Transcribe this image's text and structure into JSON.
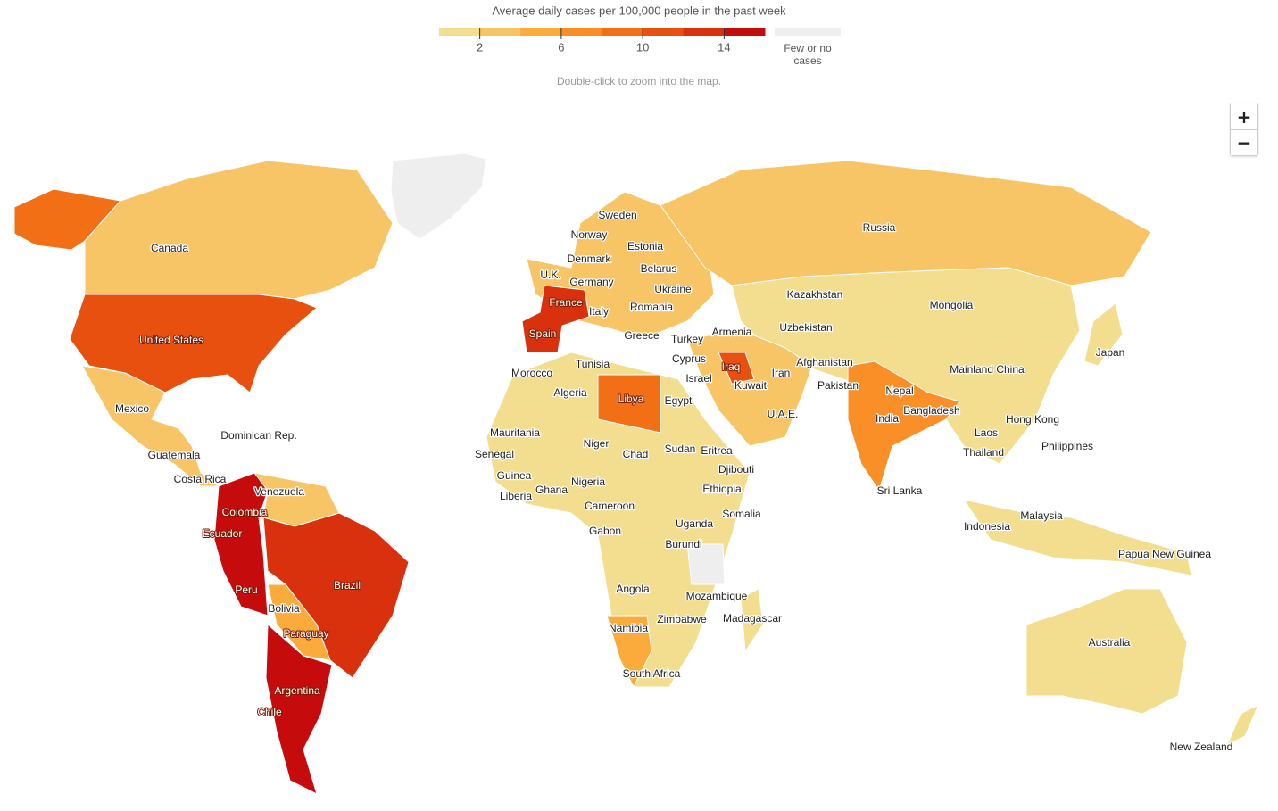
{
  "legend": {
    "title": "Average daily cases per 100,000 people in the past week",
    "range": [
      0,
      16
    ],
    "colors": [
      "#f2de8e",
      "#f8c566",
      "#fbab3c",
      "#f98f26",
      "#f26f16",
      "#e7500e",
      "#d9310e",
      "#c60b0c"
    ],
    "ticks": [
      2,
      6,
      10,
      14
    ],
    "no_data_color": "#eeeeee",
    "no_data_label": "Few or no cases"
  },
  "hint": "Double-click to zoom into the map.",
  "zoom_controls": [
    "+",
    "−"
  ],
  "countries": [
    "Canada",
    "United States",
    "Mexico",
    "Dominican Rep.",
    "Guatemala",
    "Costa Rica",
    "Venezuela",
    "Colombia",
    "Ecuador",
    "Peru",
    "Brazil",
    "Bolivia",
    "Paraguay",
    "Argentina",
    "Chile",
    "Sweden",
    "Norway",
    "Estonia",
    "Denmark",
    "Belarus",
    "U.K.",
    "Germany",
    "Ukraine",
    "France",
    "Italy",
    "Romania",
    "Spain",
    "Greece",
    "Turkey",
    "Armenia",
    "Cyprus",
    "Tunisia",
    "Morocco",
    "Iraq",
    "Israel",
    "Kuwait",
    "Algeria",
    "Libya",
    "Egypt",
    "Iran",
    "Afghanistan",
    "Pakistan",
    "U.A.E.",
    "Kazakhstan",
    "Uzbekistan",
    "Russia",
    "Mongolia",
    "Mainland China",
    "Japan",
    "Nepal",
    "India",
    "Bangladesh",
    "Hong Kong",
    "Laos",
    "Thailand",
    "Philippines",
    "Sri Lanka",
    "Malaysia",
    "Indonesia",
    "Papua New Guinea",
    "Australia",
    "New Zealand",
    "Mauritania",
    "Niger",
    "Senegal",
    "Chad",
    "Sudan",
    "Eritrea",
    "Djibouti",
    "Guinea",
    "Ghana",
    "Nigeria",
    "Ethiopia",
    "Liberia",
    "Cameroon",
    "Somalia",
    "Uganda",
    "Gabon",
    "Burundi",
    "Angola",
    "Mozambique",
    "Zimbabwe",
    "Madagascar",
    "Namibia",
    "South Africa"
  ]
}
